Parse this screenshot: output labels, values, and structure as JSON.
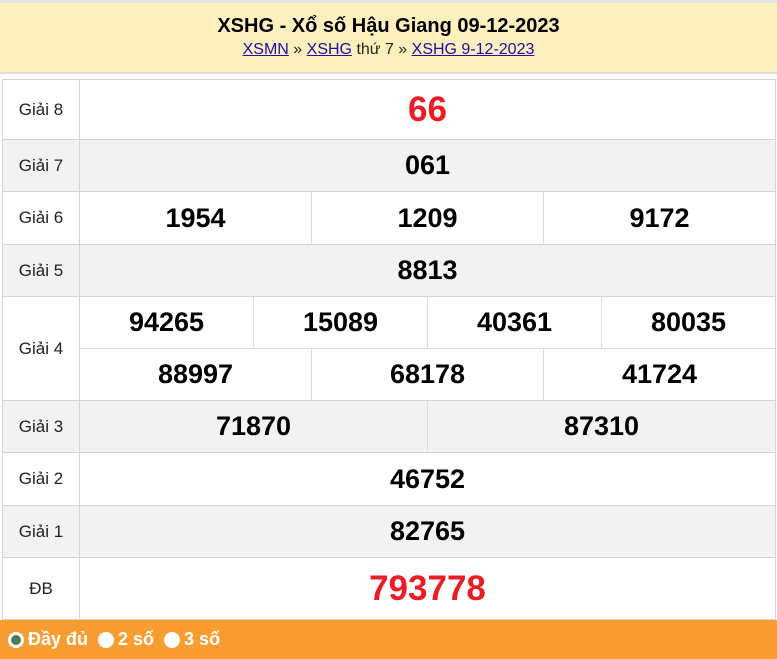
{
  "header": {
    "title": "XSHG - Xổ số Hậu Giang 09-12-2023",
    "crumb1": "XSMN",
    "sep1": " » ",
    "crumb2": "XSHG",
    "crumb2_suffix": " thứ 7",
    "sep2": " » ",
    "crumb3": "XSHG 9-12-2023"
  },
  "prizes": [
    {
      "label": "Giải 8",
      "rows": [
        [
          "66"
        ]
      ]
    },
    {
      "label": "Giải 7",
      "rows": [
        [
          "061"
        ]
      ]
    },
    {
      "label": "Giải 6",
      "rows": [
        [
          "1954",
          "1209",
          "9172"
        ]
      ]
    },
    {
      "label": "Giải 5",
      "rows": [
        [
          "8813"
        ]
      ]
    },
    {
      "label": "Giải 4",
      "rows": [
        [
          "94265",
          "15089",
          "40361",
          "80035"
        ],
        [
          "88997",
          "68178",
          "41724"
        ]
      ]
    },
    {
      "label": "Giải 3",
      "rows": [
        [
          "71870",
          "87310"
        ]
      ]
    },
    {
      "label": "Giải 2",
      "rows": [
        [
          "46752"
        ]
      ]
    },
    {
      "label": "Giải 1",
      "rows": [
        [
          "82765"
        ]
      ]
    },
    {
      "label": "ĐB",
      "rows": [
        [
          "793778"
        ]
      ]
    }
  ],
  "footer": {
    "options": [
      {
        "label": "Đầy đủ",
        "selected": true
      },
      {
        "label": "2 số",
        "selected": false
      },
      {
        "label": "3 số",
        "selected": false
      }
    ]
  },
  "colors": {
    "highlight": "#ed1c24",
    "footer": "#f99d33",
    "header": "#fef0bd"
  }
}
